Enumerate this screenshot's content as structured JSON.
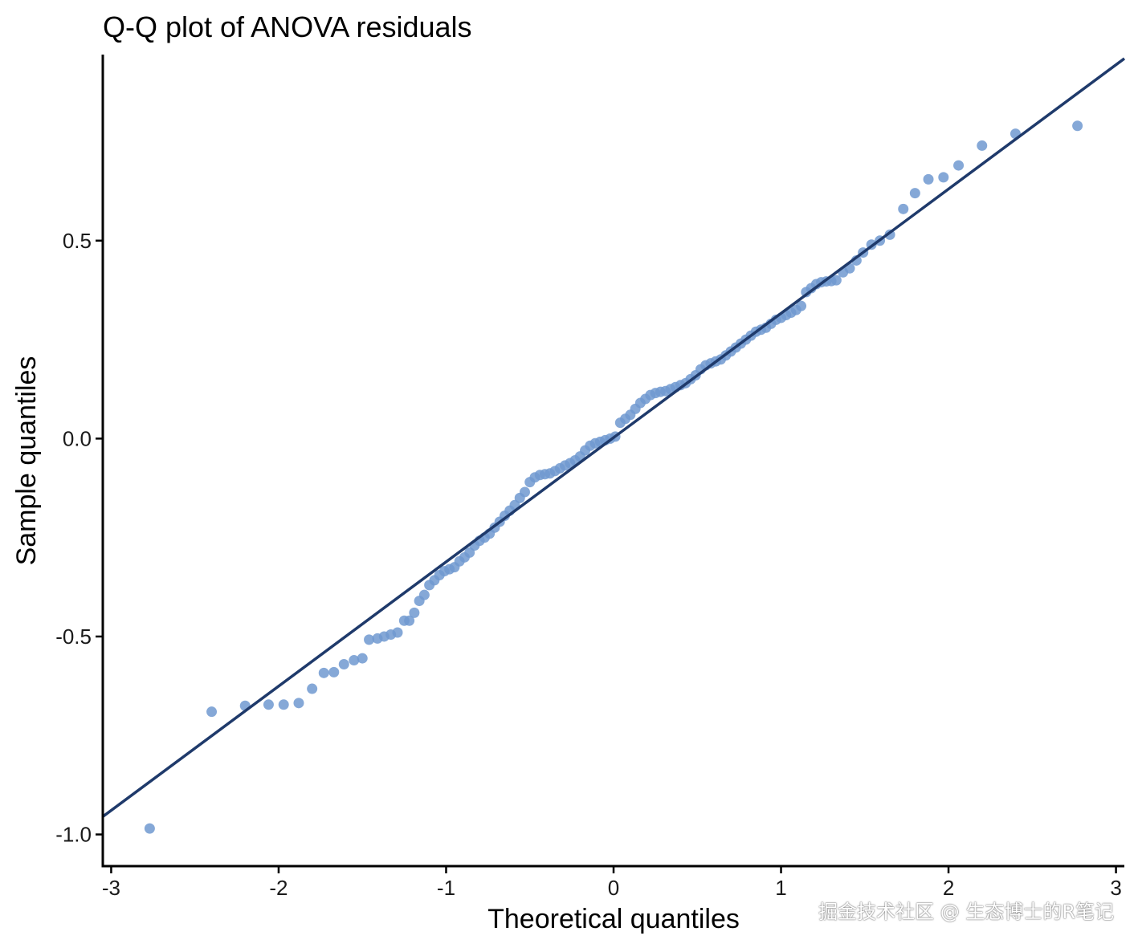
{
  "chart_data": {
    "type": "scatter",
    "title": "Q-Q plot of ANOVA residuals",
    "xlabel": "Theoretical quantiles",
    "ylabel": "Sample quantiles",
    "xlim": [
      -3.05,
      3.05
    ],
    "ylim": [
      -1.08,
      0.97
    ],
    "xticks": [
      -3,
      -2,
      -1,
      0,
      1,
      2,
      3
    ],
    "xtick_labels": [
      "-3",
      "-2",
      "-1",
      "0",
      "1",
      "2",
      "3"
    ],
    "yticks": [
      -1.0,
      -0.5,
      0.0,
      0.5
    ],
    "ytick_labels": [
      "-1.0",
      "-0.5",
      "0.0",
      "0.5"
    ],
    "grid": false,
    "point_color": "#7099d0",
    "line_color": "#1f3a6b",
    "reference_line": {
      "x": [
        -3.05,
        3.05
      ],
      "y": [
        -0.955,
        0.96
      ]
    },
    "series": [
      {
        "x": [
          -2.77,
          -2.4,
          -2.2,
          -2.06,
          -1.97,
          -1.88,
          -1.8,
          -1.73,
          -1.67,
          -1.61,
          -1.55,
          -1.5,
          -1.46,
          -1.41,
          -1.37,
          -1.33,
          -1.29,
          -1.25,
          -1.22,
          -1.19,
          -1.16,
          -1.13,
          -1.1,
          -1.07,
          -1.04,
          -1.01,
          -0.98,
          -0.95,
          -0.92,
          -0.89,
          -0.86,
          -0.83,
          -0.8,
          -0.77,
          -0.74,
          -0.71,
          -0.68,
          -0.65,
          -0.62,
          -0.59,
          -0.56,
          -0.53,
          -0.5,
          -0.47,
          -0.44,
          -0.41,
          -0.38,
          -0.35,
          -0.32,
          -0.29,
          -0.26,
          -0.23,
          -0.2,
          -0.17,
          -0.14,
          -0.11,
          -0.08,
          -0.05,
          -0.02,
          0.01,
          0.04,
          0.07,
          0.1,
          0.13,
          0.16,
          0.19,
          0.22,
          0.25,
          0.28,
          0.31,
          0.34,
          0.37,
          0.4,
          0.43,
          0.46,
          0.49,
          0.52,
          0.55,
          0.58,
          0.61,
          0.64,
          0.67,
          0.7,
          0.73,
          0.76,
          0.79,
          0.82,
          0.85,
          0.88,
          0.91,
          0.94,
          0.97,
          1.0,
          1.03,
          1.06,
          1.09,
          1.12,
          1.15,
          1.18,
          1.21,
          1.24,
          1.27,
          1.3,
          1.33,
          1.37,
          1.41,
          1.45,
          1.49,
          1.54,
          1.59,
          1.65,
          1.73,
          1.8,
          1.88,
          1.97,
          2.06,
          2.2,
          2.4,
          2.77
        ],
        "y": [
          -0.985,
          -0.69,
          -0.675,
          -0.672,
          -0.672,
          -0.668,
          -0.632,
          -0.592,
          -0.59,
          -0.57,
          -0.56,
          -0.555,
          -0.508,
          -0.505,
          -0.5,
          -0.495,
          -0.49,
          -0.46,
          -0.46,
          -0.44,
          -0.41,
          -0.395,
          -0.37,
          -0.358,
          -0.345,
          -0.335,
          -0.33,
          -0.325,
          -0.31,
          -0.3,
          -0.288,
          -0.27,
          -0.258,
          -0.25,
          -0.24,
          -0.225,
          -0.21,
          -0.195,
          -0.182,
          -0.168,
          -0.15,
          -0.135,
          -0.11,
          -0.098,
          -0.092,
          -0.09,
          -0.088,
          -0.082,
          -0.075,
          -0.068,
          -0.062,
          -0.055,
          -0.045,
          -0.03,
          -0.018,
          -0.012,
          -0.008,
          -0.004,
          0.0,
          0.005,
          0.04,
          0.05,
          0.06,
          0.075,
          0.09,
          0.1,
          0.11,
          0.115,
          0.118,
          0.12,
          0.125,
          0.13,
          0.135,
          0.14,
          0.15,
          0.16,
          0.175,
          0.185,
          0.19,
          0.195,
          0.2,
          0.21,
          0.22,
          0.23,
          0.24,
          0.25,
          0.26,
          0.27,
          0.275,
          0.28,
          0.29,
          0.3,
          0.305,
          0.312,
          0.318,
          0.325,
          0.335,
          0.37,
          0.38,
          0.39,
          0.395,
          0.397,
          0.398,
          0.4,
          0.42,
          0.43,
          0.45,
          0.47,
          0.49,
          0.5,
          0.515,
          0.58,
          0.62,
          0.655,
          0.66,
          0.69,
          0.74,
          0.77,
          0.79
        ]
      }
    ]
  },
  "watermark": "掘金技术社区 @ 生态博士的R笔记"
}
